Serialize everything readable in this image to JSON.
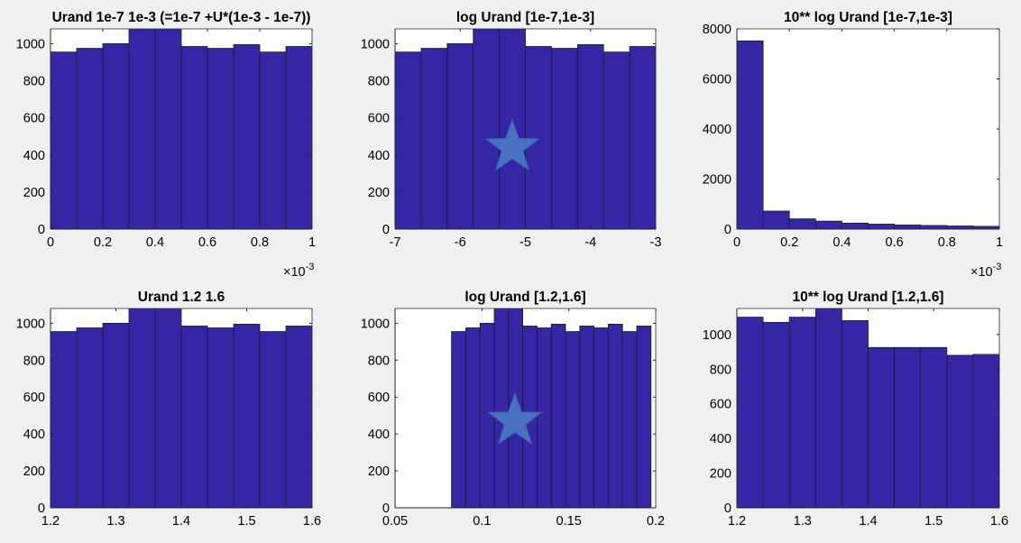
{
  "figure": {
    "background": "#f0f0f0",
    "bar_color": "#3526a5",
    "bar_edge": "#1e1e1e",
    "star_color": "#4a74c4"
  },
  "chart_data": [
    {
      "type": "bar",
      "title": "Urand 1e-7 1e-3 (=1e-7 +U*(1e-3 - 1e-7))",
      "x": [
        0.05,
        0.15,
        0.25,
        0.35,
        0.45,
        0.55,
        0.65,
        0.75,
        0.85,
        0.95
      ],
      "values": [
        955,
        975,
        1000,
        1085,
        1085,
        985,
        975,
        995,
        955,
        985
      ],
      "bin_width": 0.1,
      "xlim": [
        0,
        1
      ],
      "ylim": [
        0,
        1080
      ],
      "xticks": [
        0,
        0.2,
        0.4,
        0.6,
        0.8,
        1
      ],
      "xtick_labels": [
        "0",
        "0.2",
        "0.4",
        "0.6",
        "0.8",
        "1"
      ],
      "yticks": [
        0,
        200,
        400,
        600,
        800,
        1000
      ],
      "ytick_labels": [
        "0",
        "200",
        "400",
        "600",
        "800",
        "1000"
      ],
      "x_exponent": {
        "base": "×10",
        "power": "-3"
      },
      "star": false,
      "grid": false
    },
    {
      "type": "bar",
      "title": "log Urand [1e-7,1e-3]",
      "x": [
        -6.8,
        -6.4,
        -6.0,
        -5.6,
        -5.2,
        -4.8,
        -4.4,
        -4.0,
        -3.6,
        -3.2
      ],
      "values": [
        955,
        975,
        1000,
        1085,
        1085,
        985,
        975,
        995,
        955,
        985
      ],
      "bin_width": 0.4,
      "xlim": [
        -7,
        -3
      ],
      "ylim": [
        0,
        1080
      ],
      "xticks": [
        -7,
        -6,
        -5,
        -4,
        -3
      ],
      "xtick_labels": [
        "-7",
        "-6",
        "-5",
        "-4",
        "-3"
      ],
      "yticks": [
        0,
        200,
        400,
        600,
        800,
        1000
      ],
      "ytick_labels": [
        "0",
        "200",
        "400",
        "600",
        "800",
        "1000"
      ],
      "star": true,
      "star_at": [
        -5.2,
        440
      ],
      "grid": false
    },
    {
      "type": "bar",
      "title": "10** log Urand [1e-7,1e-3]",
      "x": [
        0.05,
        0.15,
        0.25,
        0.35,
        0.45,
        0.55,
        0.65,
        0.75,
        0.85,
        0.95
      ],
      "values": [
        7520,
        720,
        410,
        320,
        240,
        200,
        165,
        145,
        125,
        110
      ],
      "bin_width": 0.1,
      "xlim": [
        0,
        1
      ],
      "ylim": [
        0,
        8000
      ],
      "xticks": [
        0,
        0.2,
        0.4,
        0.6,
        0.8,
        1
      ],
      "xtick_labels": [
        "0",
        "0.2",
        "0.4",
        "0.6",
        "0.8",
        "1"
      ],
      "yticks": [
        0,
        2000,
        4000,
        6000,
        8000
      ],
      "ytick_labels": [
        "0",
        "2000",
        "4000",
        "6000",
        "8000"
      ],
      "x_exponent": {
        "base": "×10",
        "power": "-3"
      },
      "star": false,
      "grid": false
    },
    {
      "type": "bar",
      "title": "Urand 1.2 1.6",
      "x": [
        1.22,
        1.26,
        1.3,
        1.34,
        1.38,
        1.42,
        1.46,
        1.5,
        1.54,
        1.58
      ],
      "values": [
        955,
        975,
        1000,
        1085,
        1085,
        985,
        975,
        995,
        955,
        985
      ],
      "bin_width": 0.04,
      "xlim": [
        1.2,
        1.6
      ],
      "ylim": [
        0,
        1080
      ],
      "xticks": [
        1.2,
        1.3,
        1.4,
        1.5,
        1.6
      ],
      "xtick_labels": [
        "1.2",
        "1.3",
        "1.4",
        "1.5",
        "1.6"
      ],
      "yticks": [
        0,
        200,
        400,
        600,
        800,
        1000
      ],
      "ytick_labels": [
        "0",
        "200",
        "400",
        "600",
        "800",
        "1000"
      ],
      "star": false,
      "grid": false
    },
    {
      "type": "bar",
      "title": "log Urand [1.2,1.6]",
      "x": [
        0.0866,
        0.0948,
        0.103,
        0.1112,
        0.1194,
        0.1276,
        0.1358,
        0.144,
        0.1522,
        0.1604,
        0.1686,
        0.1768,
        0.185,
        0.1932
      ],
      "values": [
        955,
        975,
        1000,
        1085,
        1085,
        985,
        975,
        995,
        955,
        985,
        975,
        995,
        955,
        985
      ],
      "bin_width": 0.0082,
      "xlim": [
        0.05,
        0.2
      ],
      "ylim": [
        0,
        1080
      ],
      "xticks": [
        0.05,
        0.1,
        0.15,
        0.2
      ],
      "xtick_labels": [
        "0.05",
        "0.1",
        "0.15",
        "0.2"
      ],
      "yticks": [
        0,
        200,
        400,
        600,
        800,
        1000
      ],
      "ytick_labels": [
        "0",
        "200",
        "400",
        "600",
        "800",
        "1000"
      ],
      "star": true,
      "star_at": [
        0.119,
        470
      ],
      "grid": false
    },
    {
      "type": "bar",
      "title": "10** log Urand [1.2,1.6]",
      "x": [
        1.22,
        1.26,
        1.3,
        1.34,
        1.38,
        1.42,
        1.46,
        1.5,
        1.54,
        1.58
      ],
      "values": [
        1100,
        1070,
        1100,
        1150,
        1080,
        925,
        925,
        925,
        880,
        885
      ],
      "bin_width": 0.04,
      "xlim": [
        1.2,
        1.6
      ],
      "ylim": [
        0,
        1150
      ],
      "xticks": [
        1.2,
        1.3,
        1.4,
        1.5,
        1.6
      ],
      "xtick_labels": [
        "1.2",
        "1.3",
        "1.4",
        "1.5",
        "1.6"
      ],
      "yticks": [
        0,
        200,
        400,
        600,
        800,
        1000
      ],
      "ytick_labels": [
        "0",
        "200",
        "400",
        "600",
        "800",
        "1000"
      ],
      "star": false,
      "grid": false
    }
  ]
}
